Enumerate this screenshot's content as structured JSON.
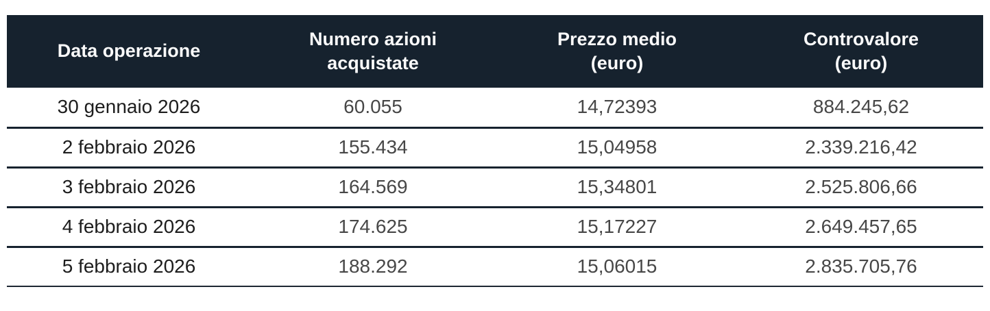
{
  "table": {
    "columns": [
      {
        "id": "data-operazione",
        "label": "Data operazione"
      },
      {
        "id": "numero-azioni",
        "label": "Numero azioni",
        "label_line2": "acquistate"
      },
      {
        "id": "prezzo-medio",
        "label": "Prezzo medio",
        "label_line2": "(euro)"
      },
      {
        "id": "controvalore",
        "label": "Controvalore",
        "label_line2": "(euro)"
      }
    ],
    "rows": [
      [
        "30 gennaio 2026",
        "60.055",
        "14,72393",
        "884.245,62"
      ],
      [
        "2 febbraio 2026",
        "155.434",
        "15,04958",
        "2.339.216,42"
      ],
      [
        "3 febbraio 2026",
        "164.569",
        "15,34801",
        "2.525.806,66"
      ],
      [
        "4 febbraio 2026",
        "174.625",
        "15,17227",
        "2.649.457,65"
      ],
      [
        "5 febbraio 2026",
        "188.292",
        "15,06015",
        "2.835.705,76"
      ]
    ]
  },
  "colors": {
    "header_bg": "#16222e",
    "header_text": "#fafafa",
    "row_separator": "#16222e",
    "date_text": "#1d1d1d",
    "number_text": "#474747",
    "page_bg": "#ffffff"
  }
}
